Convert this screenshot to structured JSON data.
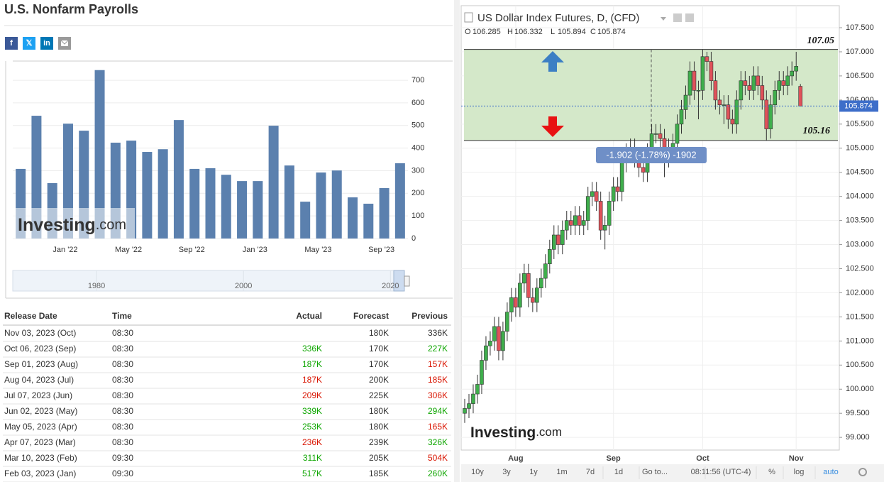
{
  "page_title": "U.S. Nonfarm Payrolls",
  "social": [
    "f",
    "𝕏",
    "in"
  ],
  "chart_data": [
    {
      "type": "bar",
      "color": "#5b80ae",
      "categories": [
        null,
        null,
        null,
        "Jan '22",
        null,
        null,
        null,
        "May '22",
        null,
        null,
        null,
        "Sep '22",
        null,
        null,
        null,
        "Jan '23",
        null,
        null,
        null,
        "May '23",
        null,
        null,
        null,
        "Sep '23",
        null
      ],
      "values": [
        308,
        543,
        245,
        508,
        477,
        745,
        424,
        433,
        383,
        395,
        524,
        308,
        311,
        282,
        254,
        254,
        499,
        323,
        163,
        292,
        301,
        182,
        154,
        223,
        333
      ],
      "ylim": [
        0,
        785
      ],
      "yticks": [
        0,
        100,
        200,
        300,
        400,
        500,
        600,
        700
      ],
      "grid": true,
      "watermark": "Investing",
      "watermark_suffix": ".com",
      "navigator": {
        "xlim": [
          1968.6,
          2021.9
        ],
        "xticks": [
          1980,
          2000,
          2020
        ]
      }
    },
    {
      "type": "candlestick",
      "title": "US Dollar Index Futures, D, (CFD)",
      "ohlc_labels": [
        "O",
        "H",
        "L",
        "C"
      ],
      "up_color": "#3fae4c",
      "down_color": "#e0525a",
      "zone_color": "#d4e8c9",
      "categories": [
        null,
        null,
        null,
        null,
        null,
        null,
        null,
        null,
        null,
        null,
        null,
        null,
        "Aug",
        null,
        null,
        null,
        null,
        null,
        null,
        null,
        null,
        null,
        null,
        null,
        null,
        null,
        null,
        null,
        null,
        null,
        null,
        null,
        null,
        null,
        null,
        "Sep",
        null,
        null,
        null,
        null,
        null,
        null,
        null,
        null,
        null,
        null,
        null,
        null,
        null,
        null,
        null,
        null,
        null,
        null,
        null,
        null,
        "Oct",
        null,
        null,
        null,
        null,
        null,
        null,
        null,
        null,
        null,
        null,
        null,
        null,
        null,
        null,
        null,
        null,
        null,
        null,
        null,
        null,
        null,
        "Nov",
        null
      ],
      "open": [
        99.5,
        99.6,
        99.7,
        99.9,
        100.1,
        100.6,
        100.9,
        101.0,
        101.3,
        100.8,
        101.2,
        101.6,
        101.9,
        101.7,
        102.2,
        102.4,
        101.9,
        101.8,
        102.1,
        102.3,
        102.6,
        102.9,
        103.2,
        103.0,
        103.3,
        103.5,
        103.4,
        103.6,
        103.4,
        103.5,
        104.0,
        104.1,
        103.9,
        103.3,
        103.4,
        103.9,
        104.2,
        104.1,
        104.7,
        104.9,
        105.0,
        104.8,
        104.6,
        104.5,
        104.9,
        105.3,
        105.3,
        105.2,
        104.8,
        105.0,
        105.1,
        105.5,
        105.8,
        106.1,
        106.6,
        106.2,
        106.2,
        106.9,
        106.8,
        106.4,
        106.0,
        105.9,
        105.9,
        105.6,
        105.5,
        106.0,
        106.4,
        106.3,
        106.2,
        106.5,
        106.3,
        106.0,
        105.4,
        105.9,
        106.2,
        106.4,
        106.3,
        106.5,
        106.6,
        106.285
      ],
      "high": [
        99.8,
        99.9,
        100.1,
        100.3,
        100.8,
        101.1,
        101.2,
        101.5,
        101.5,
        101.4,
        101.8,
        102.1,
        102.1,
        102.4,
        102.6,
        102.6,
        102.1,
        102.3,
        102.5,
        102.8,
        103.1,
        103.4,
        103.4,
        103.5,
        103.7,
        103.7,
        103.8,
        103.8,
        103.7,
        104.2,
        104.3,
        104.3,
        104.1,
        103.6,
        104.1,
        104.4,
        104.4,
        104.9,
        105.1,
        105.2,
        105.2,
        105.0,
        104.8,
        105.1,
        105.5,
        105.5,
        105.5,
        105.4,
        105.2,
        105.3,
        105.7,
        106.0,
        106.3,
        106.8,
        106.8,
        106.4,
        107.05,
        107.0,
        107.0,
        106.6,
        106.2,
        106.1,
        106.1,
        105.8,
        106.2,
        106.6,
        106.6,
        106.5,
        106.7,
        106.7,
        106.5,
        106.2,
        106.1,
        106.4,
        106.6,
        106.6,
        106.7,
        106.8,
        107.0,
        106.332
      ],
      "low": [
        99.3,
        99.4,
        99.5,
        99.7,
        99.9,
        100.4,
        100.7,
        100.8,
        100.6,
        100.6,
        101.0,
        101.4,
        101.5,
        101.5,
        102.0,
        101.7,
        101.6,
        101.6,
        101.9,
        102.1,
        102.4,
        102.7,
        102.8,
        102.8,
        103.1,
        103.2,
        103.2,
        103.2,
        103.2,
        103.3,
        103.8,
        103.7,
        103.1,
        102.9,
        103.2,
        103.7,
        103.9,
        103.9,
        104.5,
        104.7,
        104.6,
        104.4,
        104.3,
        104.3,
        104.7,
        105.1,
        105.0,
        104.4,
        104.6,
        104.8,
        104.9,
        105.3,
        105.6,
        105.9,
        106.0,
        105.6,
        106.0,
        106.6,
        106.2,
        105.8,
        105.7,
        105.5,
        105.4,
        105.3,
        105.3,
        105.8,
        106.1,
        106.0,
        106.0,
        106.1,
        105.8,
        105.16,
        105.2,
        105.7,
        106.0,
        106.1,
        106.1,
        106.3,
        106.4,
        105.894
      ],
      "close": [
        99.6,
        99.7,
        99.9,
        100.1,
        100.6,
        100.9,
        101.0,
        101.3,
        100.8,
        101.2,
        101.6,
        101.9,
        101.7,
        102.2,
        102.4,
        101.9,
        101.8,
        102.1,
        102.3,
        102.6,
        102.9,
        103.2,
        103.0,
        103.3,
        103.5,
        103.4,
        103.6,
        103.4,
        103.5,
        104.0,
        104.1,
        103.9,
        103.3,
        103.4,
        103.9,
        104.2,
        104.1,
        104.7,
        104.9,
        105.0,
        104.8,
        104.6,
        104.5,
        104.9,
        105.3,
        105.3,
        105.2,
        104.8,
        105.0,
        105.1,
        105.5,
        105.8,
        106.1,
        106.6,
        106.2,
        106.2,
        106.9,
        106.8,
        106.4,
        106.0,
        105.9,
        105.9,
        105.6,
        105.5,
        106.0,
        106.4,
        106.3,
        106.2,
        106.5,
        106.3,
        106.0,
        105.4,
        105.9,
        106.2,
        106.4,
        106.3,
        106.5,
        106.6,
        106.7,
        105.874
      ],
      "ylim": [
        98.737,
        107.957
      ],
      "yticks": [
        {
          "value": 99.0,
          "label": "99.000"
        },
        {
          "value": 99.5,
          "label": "99.500"
        },
        {
          "value": 100.0,
          "label": "100.000"
        },
        {
          "value": 100.5,
          "label": "100.500"
        },
        {
          "value": 101.0,
          "label": "101.000"
        },
        {
          "value": 101.5,
          "label": "101.500"
        },
        {
          "value": 102.0,
          "label": "102.000"
        },
        {
          "value": 102.5,
          "label": "102.500"
        },
        {
          "value": 103.0,
          "label": "103.000"
        },
        {
          "value": 103.5,
          "label": "103.500"
        },
        {
          "value": 104.0,
          "label": "104.000"
        },
        {
          "value": 104.5,
          "label": "104.500"
        },
        {
          "value": 105.0,
          "label": "105.000"
        },
        {
          "value": 105.5,
          "label": "105.500"
        },
        {
          "value": 106.0,
          "label": "106.000"
        },
        {
          "value": 106.5,
          "label": "106.500"
        },
        {
          "value": 107.0,
          "label": "107.000"
        },
        {
          "value": 107.5,
          "label": "107.500"
        }
      ],
      "grid": true,
      "zone": {
        "top": 107.05,
        "bottom": 105.16
      },
      "annotation": "-1.902 (-1.78%) -1902",
      "watermark": "Investing",
      "watermark_suffix": ".com",
      "toolbar": [
        "10y",
        "3y",
        "1y",
        "1m",
        "7d",
        "1d",
        "Go to...",
        "08:11:56 (UTC-4)",
        "%",
        "log",
        "auto"
      ]
    }
  ],
  "table": {
    "headers": [
      "Release Date",
      "Time",
      "Actual",
      "Forecast",
      "Previous"
    ],
    "rows": [
      [
        "Nov 03, 2023 (Oct)",
        "08:30",
        null,
        "180K",
        "336K"
      ],
      [
        "Oct 06, 2023 (Sep)",
        "08:30",
        "336K",
        "170K",
        "227K"
      ],
      [
        "Sep 01, 2023 (Aug)",
        "08:30",
        "187K",
        "170K",
        "157K"
      ],
      [
        "Aug 04, 2023 (Jul)",
        "08:30",
        "187K",
        "200K",
        "185K"
      ],
      [
        "Jul 07, 2023 (Jun)",
        "08:30",
        "209K",
        "225K",
        "306K"
      ],
      [
        "Jun 02, 2023 (May)",
        "08:30",
        "339K",
        "180K",
        "294K"
      ],
      [
        "May 05, 2023 (Apr)",
        "08:30",
        "253K",
        "180K",
        "165K"
      ],
      [
        "Apr 07, 2023 (Mar)",
        "08:30",
        "236K",
        "239K",
        "326K"
      ],
      [
        "Mar 10, 2023 (Feb)",
        "09:30",
        "311K",
        "205K",
        "504K"
      ],
      [
        "Feb 03, 2023 (Jan)",
        "09:30",
        "517K",
        "185K",
        "260K"
      ]
    ],
    "cell_colors": [
      [
        null,
        null
      ],
      [
        "#0ea600",
        "#0ea600"
      ],
      [
        "#0ea600",
        "#d91400"
      ],
      [
        "#d91400",
        "#d91400"
      ],
      [
        "#d91400",
        "#d91400"
      ],
      [
        "#0ea600",
        "#0ea600"
      ],
      [
        "#0ea600",
        "#d91400"
      ],
      [
        "#d91400",
        "#0ea600"
      ],
      [
        "#0ea600",
        "#d91400"
      ],
      [
        "#0ea600",
        "#0ea600"
      ]
    ]
  }
}
